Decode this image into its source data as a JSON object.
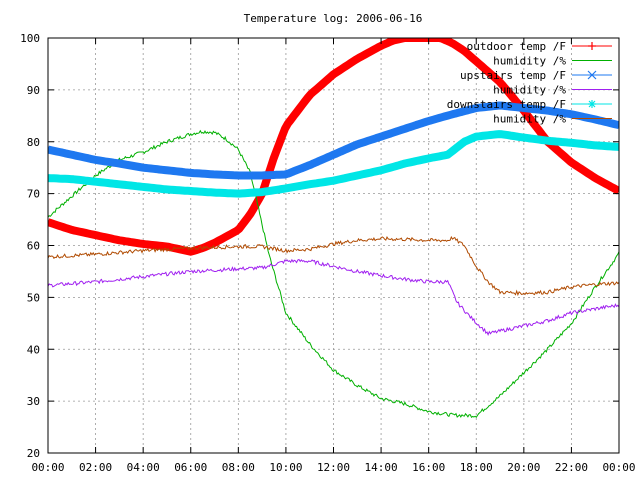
{
  "chart_data": {
    "type": "line",
    "title": "Temperature log: 2006-06-16",
    "xlabel": "",
    "ylabel": "",
    "ylim": [
      20,
      100
    ],
    "xlim": [
      "00:00",
      "24:00"
    ],
    "grid": true,
    "legend_position": "top-right",
    "x_tick_labels": [
      "00:00",
      "02:00",
      "04:00",
      "06:00",
      "08:00",
      "10:00",
      "12:00",
      "14:00",
      "16:00",
      "18:00",
      "20:00",
      "22:00",
      "00:00"
    ],
    "y_tick_labels": [
      "20",
      "30",
      "40",
      "50",
      "60",
      "70",
      "80",
      "90",
      "100"
    ],
    "x_unit": "hours",
    "series": [
      {
        "name": "outdoor temp /F",
        "color": "#ff0000",
        "style": "thick-points",
        "marker": "plus",
        "points": [
          [
            0,
            64.5
          ],
          [
            1,
            63
          ],
          [
            2,
            62
          ],
          [
            3,
            61
          ],
          [
            4,
            60.3
          ],
          [
            5,
            59.8
          ],
          [
            6,
            58.8
          ],
          [
            6.5,
            59.5
          ],
          [
            7,
            60.5
          ],
          [
            8,
            63
          ],
          [
            8.5,
            66
          ],
          [
            9,
            70
          ],
          [
            9.5,
            77
          ],
          [
            10,
            83
          ],
          [
            11,
            89
          ],
          [
            12,
            93
          ],
          [
            13,
            96
          ],
          [
            14,
            98.5
          ],
          [
            14.5,
            99.5
          ],
          [
            15,
            100
          ],
          [
            16.5,
            100
          ],
          [
            17,
            99
          ],
          [
            17.5,
            97.5
          ],
          [
            18,
            95.5
          ],
          [
            19,
            91.5
          ],
          [
            20,
            86
          ],
          [
            21,
            80
          ],
          [
            22,
            76
          ],
          [
            23,
            73
          ],
          [
            24,
            70.5
          ]
        ]
      },
      {
        "name": "humidity /%",
        "color": "#00b000",
        "style": "line",
        "points": [
          [
            0,
            65.5
          ],
          [
            1,
            69.5
          ],
          [
            2,
            73.5
          ],
          [
            3,
            76.5
          ],
          [
            4,
            78
          ],
          [
            5,
            80
          ],
          [
            6,
            81.5
          ],
          [
            6.5,
            82
          ],
          [
            7,
            81.8
          ],
          [
            7.5,
            80.5
          ],
          [
            8,
            78.5
          ],
          [
            8.5,
            74
          ],
          [
            9,
            64
          ],
          [
            9.3,
            58
          ],
          [
            10,
            47
          ],
          [
            11,
            41
          ],
          [
            12,
            36
          ],
          [
            13,
            33
          ],
          [
            14,
            30.5
          ],
          [
            15,
            29.5
          ],
          [
            16,
            28
          ],
          [
            17,
            27.3
          ],
          [
            18,
            27.2
          ],
          [
            19,
            31
          ],
          [
            20,
            35.5
          ],
          [
            21,
            40
          ],
          [
            22,
            45
          ],
          [
            23,
            52
          ],
          [
            24,
            58.5
          ]
        ]
      },
      {
        "name": "upstairs temp /F",
        "color": "#1e78f0",
        "style": "thick-points",
        "marker": "x",
        "points": [
          [
            0,
            78.5
          ],
          [
            1,
            77.5
          ],
          [
            2,
            76.5
          ],
          [
            3,
            75.8
          ],
          [
            4,
            75
          ],
          [
            5,
            74.5
          ],
          [
            6,
            74
          ],
          [
            7,
            73.7
          ],
          [
            8,
            73.5
          ],
          [
            9,
            73.5
          ],
          [
            10,
            73.7
          ],
          [
            11,
            75.5
          ],
          [
            12,
            77.5
          ],
          [
            13,
            79.5
          ],
          [
            14,
            81
          ],
          [
            15,
            82.5
          ],
          [
            16,
            84
          ],
          [
            17,
            85.3
          ],
          [
            18,
            86.5
          ],
          [
            19,
            87
          ],
          [
            20,
            86.5
          ],
          [
            21,
            86
          ],
          [
            22,
            85.3
          ],
          [
            23,
            84.3
          ],
          [
            24,
            83.2
          ]
        ]
      },
      {
        "name": "humidity /%",
        "color": "#a020f0",
        "style": "line",
        "points": [
          [
            0,
            52.3
          ],
          [
            2,
            53
          ],
          [
            4,
            54
          ],
          [
            6,
            55
          ],
          [
            8,
            55.5
          ],
          [
            9,
            55.7
          ],
          [
            10,
            57
          ],
          [
            11,
            57
          ],
          [
            12,
            56
          ],
          [
            13,
            55
          ],
          [
            14,
            54.2
          ],
          [
            15,
            53.5
          ],
          [
            16,
            53
          ],
          [
            16.8,
            53
          ],
          [
            17.2,
            49
          ],
          [
            17.8,
            46
          ],
          [
            18.5,
            43
          ],
          [
            19,
            43.5
          ],
          [
            20,
            44.5
          ],
          [
            21,
            45.5
          ],
          [
            22,
            47
          ],
          [
            23,
            47.8
          ],
          [
            24,
            48.5
          ]
        ]
      },
      {
        "name": "downstairs temp /F",
        "color": "#00e6e6",
        "style": "thick-points",
        "marker": "star",
        "points": [
          [
            0,
            73
          ],
          [
            1,
            72.8
          ],
          [
            2,
            72.3
          ],
          [
            3,
            71.8
          ],
          [
            4,
            71.3
          ],
          [
            5,
            70.8
          ],
          [
            6,
            70.5
          ],
          [
            7,
            70.2
          ],
          [
            8,
            70
          ],
          [
            9,
            70.3
          ],
          [
            10,
            71
          ],
          [
            11,
            71.8
          ],
          [
            12,
            72.5
          ],
          [
            13,
            73.5
          ],
          [
            14,
            74.5
          ],
          [
            15,
            75.8
          ],
          [
            16,
            76.8
          ],
          [
            16.8,
            77.5
          ],
          [
            17.5,
            80
          ],
          [
            18,
            81
          ],
          [
            19,
            81.5
          ],
          [
            20,
            80.8
          ],
          [
            21,
            80.2
          ],
          [
            22,
            79.8
          ],
          [
            23,
            79.3
          ],
          [
            24,
            79
          ]
        ]
      },
      {
        "name": "humidity /%",
        "color": "#b04a00",
        "style": "line",
        "points": [
          [
            0,
            57.8
          ],
          [
            2,
            58.3
          ],
          [
            4,
            59
          ],
          [
            6,
            59.5
          ],
          [
            8,
            59.8
          ],
          [
            9,
            59.8
          ],
          [
            10,
            59
          ],
          [
            11,
            59.3
          ],
          [
            12,
            60.3
          ],
          [
            13,
            61
          ],
          [
            14,
            61.3
          ],
          [
            15,
            61.2
          ],
          [
            16,
            61
          ],
          [
            16.8,
            61
          ],
          [
            17,
            61.5
          ],
          [
            17.5,
            60
          ],
          [
            18,
            56
          ],
          [
            18.5,
            53
          ],
          [
            19,
            51
          ],
          [
            20,
            50.8
          ],
          [
            21,
            51
          ],
          [
            22,
            52
          ],
          [
            23,
            52.5
          ],
          [
            24,
            52.8
          ]
        ]
      }
    ]
  }
}
